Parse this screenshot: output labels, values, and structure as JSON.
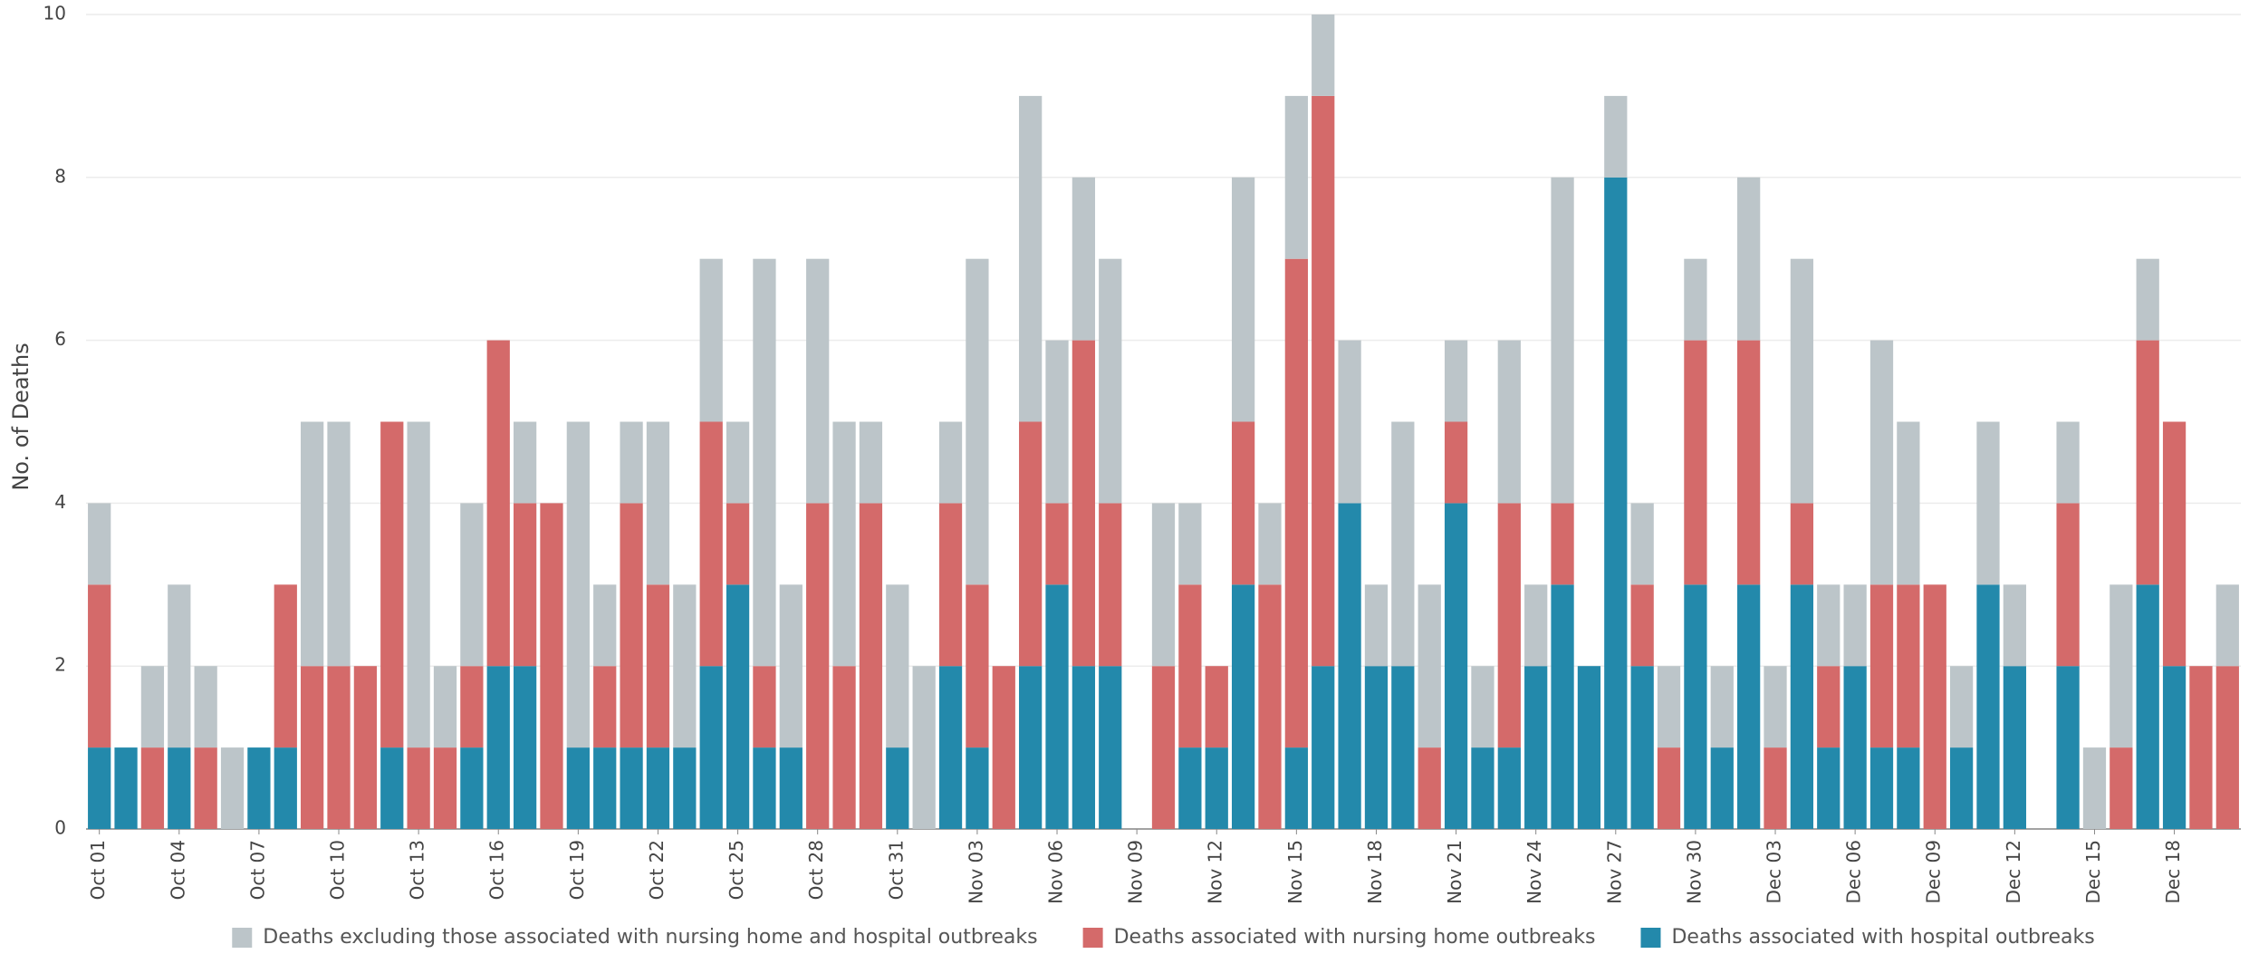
{
  "chart_data": {
    "type": "stacked_bar",
    "y_label": "No. of Deaths",
    "categories": [
      "Oct 01",
      null,
      null,
      "Oct 04",
      null,
      null,
      "Oct 07",
      null,
      null,
      "Oct 10",
      null,
      null,
      "Oct 13",
      null,
      null,
      "Oct 16",
      null,
      null,
      "Oct 19",
      null,
      null,
      "Oct 22",
      null,
      null,
      "Oct 25",
      null,
      null,
      "Oct 28",
      null,
      null,
      "Oct 31",
      null,
      null,
      "Nov 03",
      null,
      null,
      "Nov 06",
      null,
      null,
      "Nov 09",
      null,
      null,
      "Nov 12",
      null,
      null,
      "Nov 15",
      null,
      null,
      "Nov 18",
      null,
      null,
      "Nov 21",
      null,
      null,
      "Nov 24",
      null,
      null,
      "Nov 27",
      null,
      null,
      "Nov 30",
      null,
      null,
      "Dec 03",
      null,
      null,
      "Dec 06",
      null,
      null,
      "Dec 09",
      null,
      null,
      "Dec 12",
      null,
      null,
      "Dec 15",
      null,
      null,
      "Dec 18",
      null,
      null
    ],
    "series": [
      {
        "name": "Deaths excluding those associated with nursing home and hospital outbreaks",
        "color": "#bcc5c9",
        "values": [
          1,
          0,
          1,
          2,
          1,
          1,
          0,
          0,
          3,
          3,
          0,
          0,
          4,
          1,
          2,
          0,
          1,
          0,
          4,
          1,
          1,
          2,
          2,
          2,
          1,
          5,
          2,
          3,
          3,
          1,
          2,
          2,
          1,
          4,
          0,
          4,
          2,
          2,
          3,
          0,
          2,
          1,
          0,
          3,
          1,
          2,
          1,
          2,
          1,
          3,
          2,
          1,
          1,
          2,
          1,
          4,
          0,
          1,
          1,
          1,
          1,
          1,
          2,
          1,
          3,
          1,
          1,
          3,
          2,
          0,
          1,
          2,
          1,
          0,
          1,
          1,
          2,
          1,
          0,
          0,
          1
        ]
      },
      {
        "name": "Deaths associated with nursing home outbreaks",
        "color": "#d46a6a",
        "values": [
          2,
          0,
          1,
          0,
          1,
          0,
          0,
          2,
          2,
          2,
          2,
          4,
          1,
          1,
          1,
          4,
          2,
          4,
          0,
          1,
          3,
          2,
          0,
          3,
          1,
          1,
          0,
          4,
          2,
          4,
          0,
          0,
          2,
          2,
          2,
          3,
          1,
          4,
          2,
          0,
          2,
          2,
          1,
          2,
          3,
          6,
          7,
          0,
          0,
          0,
          1,
          1,
          0,
          3,
          0,
          1,
          0,
          0,
          1,
          1,
          3,
          0,
          3,
          1,
          1,
          1,
          0,
          2,
          2,
          3,
          0,
          0,
          0,
          0,
          2,
          0,
          1,
          3,
          3,
          2,
          2
        ]
      },
      {
        "name": "Deaths associated with hospital outbreaks",
        "color": "#2389ab",
        "values": [
          1,
          1,
          0,
          1,
          0,
          0,
          1,
          1,
          0,
          0,
          0,
          1,
          0,
          0,
          1,
          2,
          2,
          0,
          1,
          1,
          1,
          1,
          1,
          2,
          3,
          1,
          1,
          0,
          0,
          0,
          1,
          0,
          2,
          1,
          0,
          2,
          3,
          2,
          2,
          0,
          0,
          1,
          1,
          3,
          0,
          1,
          2,
          4,
          2,
          2,
          0,
          4,
          1,
          1,
          2,
          3,
          2,
          8,
          2,
          0,
          3,
          1,
          3,
          0,
          3,
          1,
          2,
          1,
          1,
          0,
          1,
          3,
          2,
          0,
          2,
          0,
          0,
          3,
          2,
          0,
          0
        ]
      }
    ],
    "ylim": [
      0,
      10
    ],
    "yticks": [
      0,
      2,
      4,
      6,
      8,
      10
    ],
    "grid": true,
    "legend": "bottom"
  }
}
